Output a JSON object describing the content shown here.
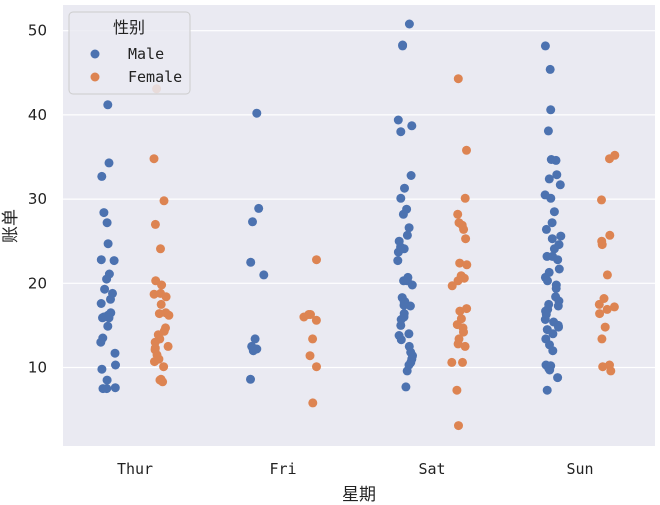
{
  "chart_data": {
    "type": "scatter",
    "subtype": "strip",
    "xlabel": "星期",
    "ylabel": "账单",
    "categories": [
      "Thur",
      "Fri",
      "Sat",
      "Sun"
    ],
    "yticks": [
      10,
      20,
      30,
      40,
      50
    ],
    "ylim": [
      1.5,
      53
    ],
    "grid": true,
    "legend": {
      "title": "性别",
      "placement": "top-left",
      "entries": [
        "Male",
        "Female"
      ]
    },
    "colors": {
      "Male": "#4c72b0",
      "Female": "#dd8452",
      "background": "#eaeaf2",
      "grid": "#ffffff"
    },
    "series": [
      {
        "name": "Male",
        "points": [
          {
            "x": "Thur",
            "y": [
              41.2,
              34.3,
              32.7,
              28.4,
              27.2,
              24.7,
              22.8,
              22.7,
              21.1,
              20.5,
              19.3,
              18.8,
              18.1,
              17.6,
              16.2,
              16.0,
              16.5,
              15.9,
              15.9,
              14.9,
              13.5,
              13.0,
              11.7,
              10.3,
              9.8,
              8.5,
              7.6,
              7.5,
              7.5
            ]
          },
          {
            "x": "Fri",
            "y": [
              40.2,
              28.9,
              27.3,
              22.5,
              21.0,
              13.4,
              12.5,
              12.2,
              12.0,
              8.6
            ]
          },
          {
            "x": "Sat",
            "y": [
              50.8,
              48.3,
              48.2,
              39.4,
              38.7,
              38.0,
              32.8,
              31.3,
              30.1,
              28.8,
              28.2,
              26.6,
              25.7,
              25.0,
              24.3,
              24.1,
              23.7,
              22.7,
              20.3,
              20.7,
              20.3,
              19.8,
              18.3,
              17.9,
              17.8,
              17.4,
              17.3,
              16.4,
              16.0,
              15.7,
              15.0,
              14.0,
              13.8,
              13.3,
              12.5,
              11.8,
              11.4,
              11.0,
              10.6,
              10.3,
              9.6,
              7.7
            ]
          },
          {
            "x": "Sun",
            "y": [
              48.2,
              45.4,
              40.6,
              38.1,
              34.7,
              34.6,
              32.9,
              32.4,
              31.7,
              30.5,
              30.1,
              28.5,
              27.2,
              26.4,
              25.6,
              25.3,
              24.6,
              24.1,
              23.2,
              23.2,
              22.8,
              21.7,
              21.3,
              20.7,
              20.3,
              19.8,
              19.4,
              18.4,
              17.9,
              17.5,
              17.3,
              16.9,
              16.7,
              16.3,
              15.7,
              15.4,
              15.0,
              14.8,
              14.5,
              14.0,
              13.4,
              12.7,
              12.0,
              10.3,
              10.2,
              9.9,
              9.7,
              8.8,
              7.3
            ]
          }
        ]
      },
      {
        "name": "Female",
        "points": [
          {
            "x": "Thur",
            "y": [
              43.1,
              34.8,
              29.8,
              27.0,
              24.1,
              20.3,
              19.8,
              18.8,
              18.7,
              18.4,
              17.5,
              16.5,
              16.4,
              16.2,
              14.7,
              14.3,
              13.9,
              13.4,
              13.0,
              12.5,
              12.3,
              12.1,
              11.5,
              11.0,
              10.7,
              10.1,
              8.6,
              8.5,
              8.3
            ]
          },
          {
            "x": "Fri",
            "y": [
              22.8,
              16.3,
              16.3,
              16.0,
              15.6,
              13.4,
              11.4,
              10.1,
              5.8
            ]
          },
          {
            "x": "Sat",
            "y": [
              44.3,
              35.8,
              30.1,
              28.2,
              27.2,
              26.9,
              26.4,
              25.3,
              22.4,
              22.2,
              20.9,
              20.6,
              20.3,
              19.7,
              17.0,
              16.7,
              15.8,
              15.1,
              14.7,
              14.2,
              13.4,
              12.8,
              12.5,
              10.6,
              10.6,
              7.3,
              3.1
            ]
          },
          {
            "x": "Sun",
            "y": [
              35.2,
              34.8,
              29.9,
              25.7,
              25.0,
              24.6,
              21.0,
              18.2,
              17.5,
              17.2,
              16.9,
              16.4,
              14.8,
              13.4,
              10.3,
              10.1,
              9.6
            ]
          }
        ]
      }
    ]
  }
}
